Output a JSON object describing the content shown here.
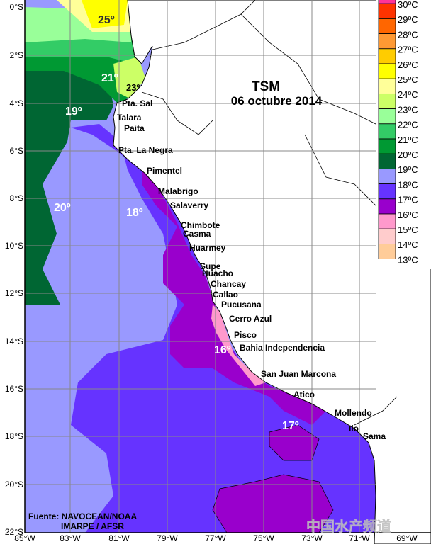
{
  "title": {
    "line1": "TSM",
    "line2": "06 octubre 2014"
  },
  "source": {
    "line1": "Fuente: NAVOCEAN/NOAA",
    "line2": "IMARPE / AFSR"
  },
  "watermark": "中国水产频道",
  "x_ticks": [
    "85°W",
    "83°W",
    "81°W",
    "79°W",
    "77°W",
    "75°W",
    "73°W",
    "71°W",
    "69°W"
  ],
  "y_ticks": [
    "0°S",
    "2°S",
    "4°S",
    "6°S",
    "8°S",
    "10°S",
    "12°S",
    "14°S",
    "16°S",
    "18°S",
    "20°S",
    "22°S"
  ],
  "legend": [
    {
      "label": "30ºC",
      "color": "#ff3399"
    },
    {
      "label": "29ºC",
      "color": "#ff3300"
    },
    {
      "label": "28ºC",
      "color": "#ff6600"
    },
    {
      "label": "27ºC",
      "color": "#ff9933"
    },
    {
      "label": "26ºC",
      "color": "#ffcc00"
    },
    {
      "label": "25ºC",
      "color": "#ffff00"
    },
    {
      "label": "24ºC",
      "color": "#ffff99"
    },
    {
      "label": "23ºC",
      "color": "#ccff66"
    },
    {
      "label": "22ºC",
      "color": "#99ff99"
    },
    {
      "label": "21ºC",
      "color": "#33cc66"
    },
    {
      "label": "20ºC",
      "color": "#009933"
    },
    {
      "label": "19ºC",
      "color": "#006633"
    },
    {
      "label": "18ºC",
      "color": "#9999ff"
    },
    {
      "label": "17ºC",
      "color": "#6633ff"
    },
    {
      "label": "16ºC",
      "color": "#9900cc"
    },
    {
      "label": "15ºC",
      "color": "#ff99cc"
    },
    {
      "label": "14ºC",
      "color": "#ffcccc"
    },
    {
      "label": "13ºC",
      "color": "#ffcc99"
    }
  ],
  "temp_labels": [
    "25º",
    "21º",
    "23º",
    "19º",
    "20º",
    "18º",
    "16º",
    "17º"
  ],
  "cities": [
    "Pta. Sal",
    "Talara",
    "Paita",
    "Pta. La Negra",
    "Pimentel",
    "Malabrigo",
    "Salaverry",
    "Chimbote",
    "Casma",
    "Huarmey",
    "Supe",
    "Huacho",
    "Chancay",
    "Callao",
    "Pucusana",
    "Cerro Azul",
    "Pisco",
    "Bahia Independencia",
    "San Juan Marcona",
    "Atico",
    "Mollendo",
    "Ilo",
    "Sama"
  ]
}
